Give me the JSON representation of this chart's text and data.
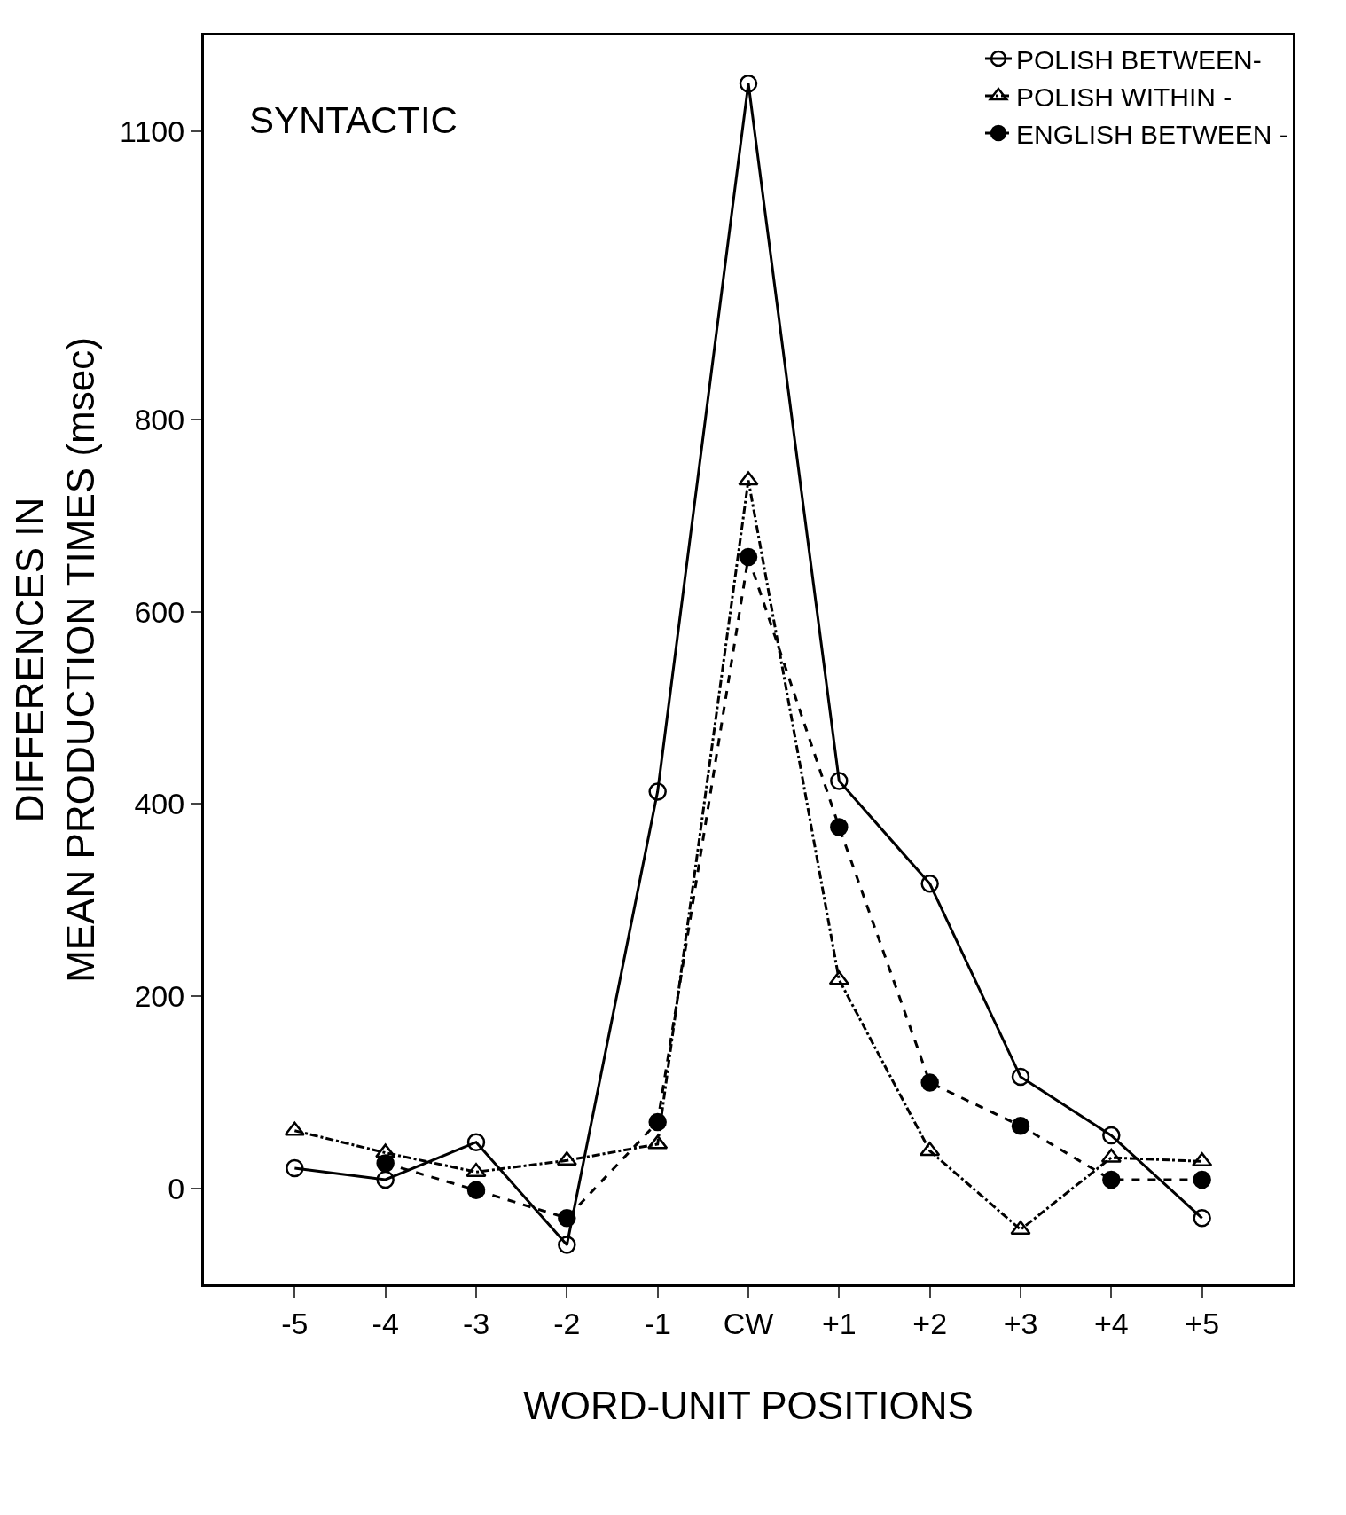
{
  "chart_data": {
    "type": "line",
    "title": "SYNTACTIC",
    "xlabel": "WORD-UNIT POSITIONS",
    "ylabel": "DIFFERENCES IN\nMEAN PRODUCTION TIMES (msec)",
    "categories": [
      "-5",
      "-4",
      "-3",
      "-2",
      "-1",
      "CW",
      "+1",
      "+2",
      "+3",
      "+4",
      "+5"
    ],
    "series": [
      {
        "name": "POLISH BETWEEN-",
        "color": "#000000",
        "marker": "circle-open",
        "line_style": "solid",
        "values": [
          21,
          9,
          48,
          -59,
          413,
          1150,
          424,
          317,
          116,
          55,
          -31
        ]
      },
      {
        "name": "POLISH WITHIN -",
        "color": "#000000",
        "marker": "triangle-open",
        "line_style": "dashdot",
        "values": [
          60,
          37,
          17,
          29,
          46,
          737,
          217,
          39,
          -43,
          32,
          28
        ]
      },
      {
        "name": "ENGLISH BETWEEN -",
        "color": "#000000",
        "marker": "circle",
        "line_style": "dashed",
        "values": [
          null,
          26,
          -2,
          -31,
          69,
          657,
          376,
          110,
          65,
          9,
          9
        ]
      }
    ],
    "ylim": [
      -100,
      1200
    ],
    "yticks": [
      0,
      200,
      400,
      600,
      800,
      1100
    ],
    "legend": "top right"
  }
}
